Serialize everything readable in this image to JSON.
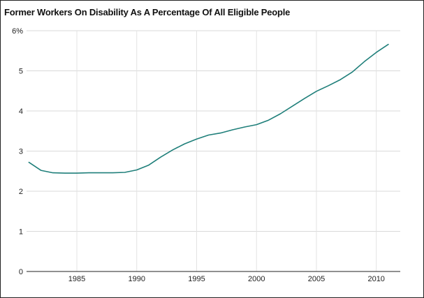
{
  "chart_data": {
    "type": "line",
    "title": "Former Workers On Disability As A Percentage Of All Eligible People",
    "xlabel": "",
    "ylabel": "",
    "xlim": [
      1980.8,
      2012
    ],
    "ylim": [
      0,
      6
    ],
    "yticks": [
      {
        "value": 0,
        "label": "0"
      },
      {
        "value": 1,
        "label": "1"
      },
      {
        "value": 2,
        "label": "2"
      },
      {
        "value": 3,
        "label": "3"
      },
      {
        "value": 4,
        "label": "4"
      },
      {
        "value": 5,
        "label": "5"
      },
      {
        "value": 6,
        "label": "6%"
      }
    ],
    "xticks": [
      {
        "value": 1985,
        "label": "1985"
      },
      {
        "value": 1990,
        "label": "1990"
      },
      {
        "value": 1995,
        "label": "1995"
      },
      {
        "value": 2000,
        "label": "2000"
      },
      {
        "value": 2005,
        "label": "2005"
      },
      {
        "value": 2010,
        "label": "2010"
      }
    ],
    "grid": true,
    "line_color": "#1f7f7a",
    "series": [
      {
        "x": [
          1981,
          1982,
          1983,
          1984,
          1985,
          1986,
          1987,
          1988,
          1989,
          1990,
          1991,
          1992,
          1993,
          1994,
          1995,
          1996,
          1997,
          1998,
          1999,
          2000,
          2001,
          2002,
          2003,
          2004,
          2005,
          2006,
          2007,
          2008,
          2009,
          2010,
          2011
        ],
        "values": [
          2.72,
          2.52,
          2.46,
          2.45,
          2.45,
          2.46,
          2.46,
          2.46,
          2.47,
          2.53,
          2.65,
          2.85,
          3.03,
          3.18,
          3.3,
          3.4,
          3.45,
          3.53,
          3.6,
          3.66,
          3.77,
          3.93,
          4.12,
          4.31,
          4.49,
          4.63,
          4.78,
          4.97,
          5.23,
          5.46,
          5.66
        ]
      }
    ]
  }
}
